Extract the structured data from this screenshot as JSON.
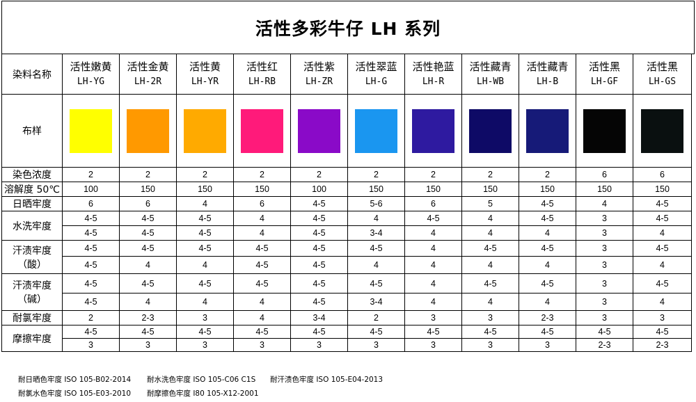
{
  "title": "活性多彩牛仔 LH 系列",
  "labels": {
    "dye_name": "染料名称",
    "swatch": "布样",
    "depth": "染色浓度",
    "solubility": "溶解度 50℃",
    "light": "日晒牢度",
    "washing": "水洗牢度",
    "perspiration_acid": "汗渍牢度\n（酸）",
    "perspiration_alkali": "汗渍牢度\n（碱）",
    "chlorine": "耐氯牢度",
    "rubbing": "摩擦牢度"
  },
  "dyes": [
    {
      "name": "活性嫩黄",
      "code": "LH-YG",
      "color": "#FFFF00",
      "depth": "2",
      "solubility": "100",
      "light": "6",
      "wash": [
        "4-5",
        "4-5"
      ],
      "acid": [
        "4-5",
        "4-5"
      ],
      "alkali": [
        "4-5",
        "4-5"
      ],
      "chlorine": "2",
      "rubbing": [
        "4-5",
        "3"
      ]
    },
    {
      "name": "活性金黄",
      "code": "LH-2R",
      "color": "#FF9900",
      "depth": "2",
      "solubility": "150",
      "light": "6",
      "wash": [
        "4-5",
        "4-5"
      ],
      "acid": [
        "4-5",
        "4"
      ],
      "alkali": [
        "4-5",
        "4"
      ],
      "chlorine": "2-3",
      "rubbing": [
        "4-5",
        "3"
      ]
    },
    {
      "name": "活性黄",
      "code": "LH-YR",
      "color": "#FFAA00",
      "depth": "2",
      "solubility": "150",
      "light": "4",
      "wash": [
        "4-5",
        "4-5"
      ],
      "acid": [
        "4-5",
        "4"
      ],
      "alkali": [
        "4-5",
        "4"
      ],
      "chlorine": "3",
      "rubbing": [
        "4-5",
        "3"
      ]
    },
    {
      "name": "活性红",
      "code": "LH-RB",
      "color": "#FF1A7A",
      "depth": "2",
      "solubility": "150",
      "light": "6",
      "wash": [
        "4",
        "4"
      ],
      "acid": [
        "4-5",
        "4-5"
      ],
      "alkali": [
        "4-5",
        "4"
      ],
      "chlorine": "4",
      "rubbing": [
        "4-5",
        "3"
      ]
    },
    {
      "name": "活性紫",
      "code": "LH-ZR",
      "color": "#8A0AC8",
      "depth": "2",
      "solubility": "100",
      "light": "4-5",
      "wash": [
        "4-5",
        "4-5"
      ],
      "acid": [
        "4-5",
        "4-5"
      ],
      "alkali": [
        "4-5",
        "4-5"
      ],
      "chlorine": "3-4",
      "rubbing": [
        "4-5",
        "3"
      ]
    },
    {
      "name": "活性翠蓝",
      "code": "LH-G",
      "color": "#1A96F0",
      "depth": "2",
      "solubility": "150",
      "light": "5-6",
      "wash": [
        "4",
        "3-4"
      ],
      "acid": [
        "4-5",
        "4"
      ],
      "alkali": [
        "4-5",
        "3-4"
      ],
      "chlorine": "2",
      "rubbing": [
        "4-5",
        "3"
      ]
    },
    {
      "name": "活性艳蓝",
      "code": "LH-R",
      "color": "#2E1AA0",
      "depth": "2",
      "solubility": "150",
      "light": "6",
      "wash": [
        "4-5",
        "4"
      ],
      "acid": [
        "4",
        "4"
      ],
      "alkali": [
        "4",
        "4"
      ],
      "chlorine": "3",
      "rubbing": [
        "4-5",
        "3"
      ]
    },
    {
      "name": "活性藏青",
      "code": "LH-WB",
      "color": "#0E0A66",
      "depth": "2",
      "solubility": "150",
      "light": "5",
      "wash": [
        "4",
        "4"
      ],
      "acid": [
        "4-5",
        "4"
      ],
      "alkali": [
        "4-5",
        "4"
      ],
      "chlorine": "3",
      "rubbing": [
        "4-5",
        "3"
      ]
    },
    {
      "name": "活性藏青",
      "code": "LH-B",
      "color": "#161A78",
      "depth": "2",
      "solubility": "150",
      "light": "4-5",
      "wash": [
        "4-5",
        "4"
      ],
      "acid": [
        "4-5",
        "4"
      ],
      "alkali": [
        "4-5",
        "4"
      ],
      "chlorine": "2-3",
      "rubbing": [
        "4-5",
        "3"
      ]
    },
    {
      "name": "活性黑",
      "code": "LH-GF",
      "color": "#050505",
      "depth": "6",
      "solubility": "150",
      "light": "4",
      "wash": [
        "3",
        "3"
      ],
      "acid": [
        "3",
        "3"
      ],
      "alkali": [
        "3",
        "3"
      ],
      "chlorine": "3",
      "rubbing": [
        "4-5",
        "2-3"
      ]
    },
    {
      "name": "活性黑",
      "code": "LH-GS",
      "color": "#0A1010",
      "depth": "6",
      "solubility": "150",
      "light": "4-5",
      "wash": [
        "4-5",
        "4"
      ],
      "acid": [
        "4-5",
        "4"
      ],
      "alkali": [
        "4-5",
        "4"
      ],
      "chlorine": "3",
      "rubbing": [
        "4-5",
        "2-3"
      ]
    }
  ],
  "footnotes": {
    "light": "耐日晒色牢度 ISO 105-B02-2014",
    "wash": "耐水洗色牢度 ISO 105-C06 C1S",
    "perspiration": "耐汗渍色牢度 ISO 105-E04-2013",
    "chlorine": "耐氯水色牢度 ISO 105-E03-2010",
    "rubbing": "耐摩擦色牢度 I80 105-X12-2001"
  }
}
